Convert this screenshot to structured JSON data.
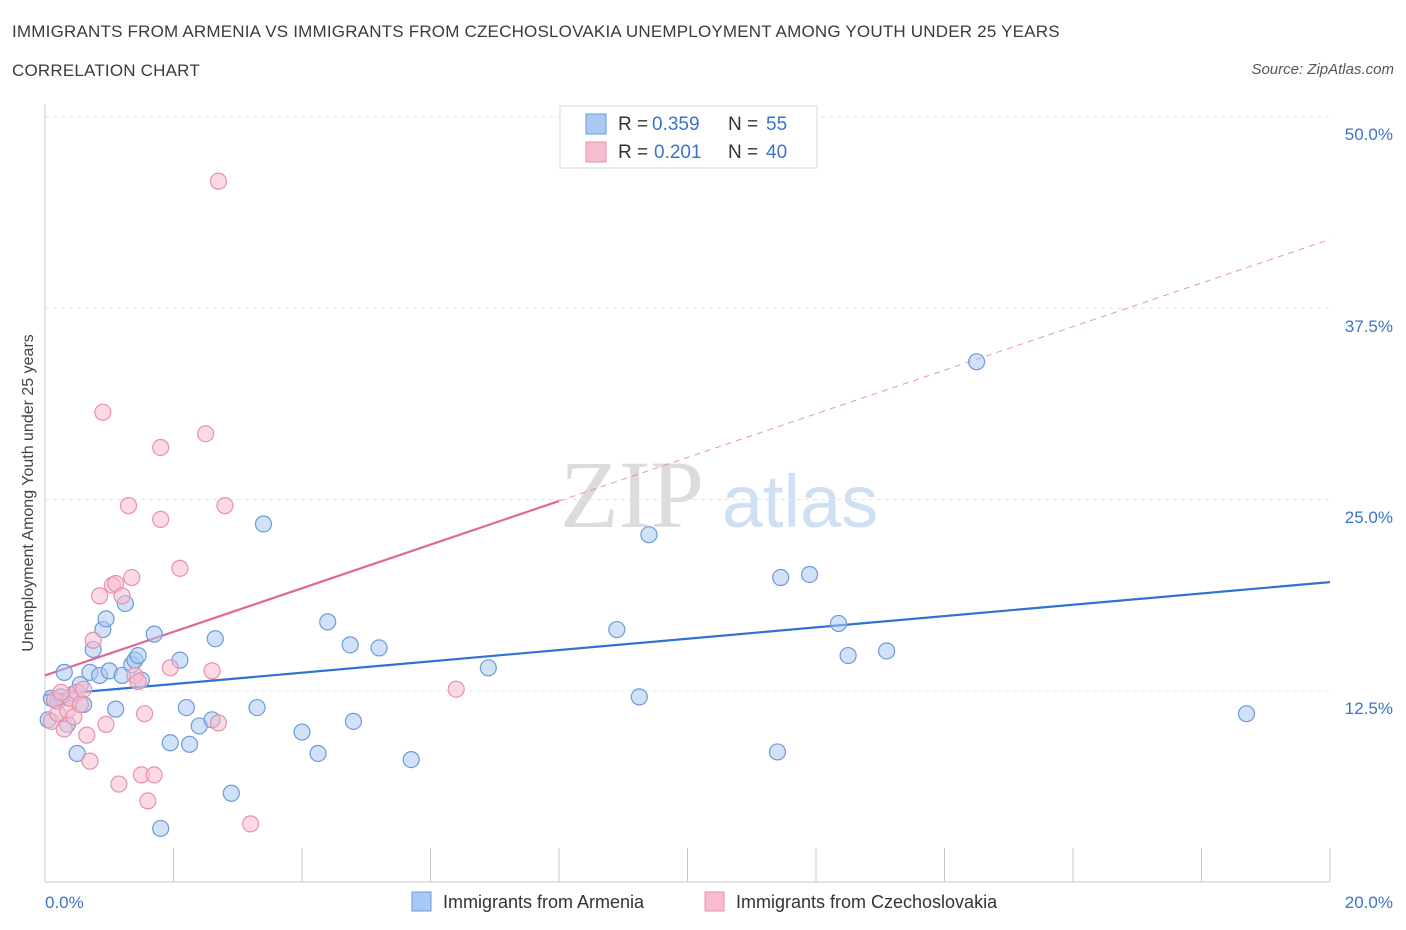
{
  "header": {
    "title": "IMMIGRANTS FROM ARMENIA VS IMMIGRANTS FROM CZECHOSLOVAKIA UNEMPLOYMENT AMONG YOUTH UNDER 25 YEARS",
    "subtitle": "CORRELATION CHART",
    "source": "Source: ZipAtlas.com"
  },
  "watermark": {
    "zip": "ZIP",
    "atlas": "atlas"
  },
  "legend_top": {
    "rows": [
      {
        "r_label": "R = ",
        "r_value": "0.359",
        "n_label": "N = ",
        "n_value": "55"
      },
      {
        "r_label": "R = ",
        "r_value": "0.201",
        "n_label": "N = ",
        "n_value": "40"
      }
    ]
  },
  "colors": {
    "armenia_fill": "#a9c8f2",
    "armenia_stroke": "#6b9bd8",
    "armenia_line": "#2f72d0",
    "czech_fill": "#f7bccd",
    "czech_stroke": "#e890ad",
    "czech_line": "#e0679a",
    "axis_label": "#3a74c9",
    "grid": "#dde3ea"
  },
  "chart_data": {
    "type": "scatter",
    "xlabel": "",
    "ylabel": "Unemployment Among Youth under 25 years",
    "xlim": [
      0,
      20
    ],
    "ylim": [
      0,
      50
    ],
    "x_tick_labels": [
      "0.0%",
      "20.0%"
    ],
    "y_tick_values": [
      12.5,
      25,
      37.5,
      50
    ],
    "y_tick_labels": [
      "12.5%",
      "25.0%",
      "37.5%",
      "50.0%"
    ],
    "series": [
      {
        "name": "Immigrants from Armenia",
        "R": 0.359,
        "N": 55,
        "trend": {
          "x0": 0,
          "y0": 12.2,
          "x1": 20,
          "y1": 19.6,
          "solid_until": 20
        },
        "points": [
          [
            0.1,
            12.0
          ],
          [
            0.2,
            11.8
          ],
          [
            0.25,
            12.1
          ],
          [
            0.3,
            13.7
          ],
          [
            0.35,
            10.3
          ],
          [
            0.45,
            12.3
          ],
          [
            0.5,
            8.4
          ],
          [
            0.55,
            12.9
          ],
          [
            0.6,
            11.6
          ],
          [
            0.7,
            13.7
          ],
          [
            0.75,
            15.2
          ],
          [
            0.85,
            13.5
          ],
          [
            0.9,
            16.5
          ],
          [
            0.95,
            17.2
          ],
          [
            1.0,
            13.8
          ],
          [
            1.1,
            11.3
          ],
          [
            1.2,
            13.5
          ],
          [
            1.25,
            18.2
          ],
          [
            1.35,
            14.2
          ],
          [
            1.4,
            14.5
          ],
          [
            1.45,
            14.8
          ],
          [
            1.5,
            13.2
          ],
          [
            1.7,
            16.2
          ],
          [
            1.8,
            3.5
          ],
          [
            1.95,
            9.1
          ],
          [
            2.1,
            14.5
          ],
          [
            2.2,
            11.4
          ],
          [
            2.25,
            9.0
          ],
          [
            2.4,
            10.2
          ],
          [
            2.6,
            10.6
          ],
          [
            2.65,
            15.9
          ],
          [
            2.9,
            5.8
          ],
          [
            3.3,
            11.4
          ],
          [
            3.4,
            23.4
          ],
          [
            4.0,
            9.8
          ],
          [
            4.25,
            8.4
          ],
          [
            4.4,
            17.0
          ],
          [
            4.75,
            15.5
          ],
          [
            4.8,
            10.5
          ],
          [
            5.2,
            15.3
          ],
          [
            5.7,
            8.0
          ],
          [
            6.9,
            14.0
          ],
          [
            8.9,
            16.5
          ],
          [
            9.25,
            12.1
          ],
          [
            9.4,
            22.7
          ],
          [
            11.4,
            8.5
          ],
          [
            11.45,
            19.9
          ],
          [
            11.9,
            20.1
          ],
          [
            12.35,
            16.9
          ],
          [
            12.5,
            14.8
          ],
          [
            13.1,
            15.1
          ],
          [
            14.5,
            34.0
          ],
          [
            18.7,
            11.0
          ],
          [
            0.05,
            10.6
          ],
          [
            0.15,
            11.9
          ]
        ]
      },
      {
        "name": "Immigrants from Czechoslovakia",
        "R": 0.201,
        "N": 40,
        "trend": {
          "x0": 0,
          "y0": 13.5,
          "x1": 20,
          "y1": 42.0,
          "solid_until": 8.0
        },
        "points": [
          [
            0.1,
            10.5
          ],
          [
            0.15,
            11.9
          ],
          [
            0.2,
            11.0
          ],
          [
            0.3,
            10.0
          ],
          [
            0.35,
            11.2
          ],
          [
            0.4,
            12.0
          ],
          [
            0.45,
            10.8
          ],
          [
            0.5,
            12.4
          ],
          [
            0.55,
            11.6
          ],
          [
            0.6,
            12.6
          ],
          [
            0.65,
            9.6
          ],
          [
            0.7,
            7.9
          ],
          [
            0.75,
            15.8
          ],
          [
            0.85,
            18.7
          ],
          [
            0.95,
            10.3
          ],
          [
            0.9,
            30.7
          ],
          [
            1.05,
            19.4
          ],
          [
            1.1,
            19.5
          ],
          [
            1.15,
            6.4
          ],
          [
            1.2,
            18.7
          ],
          [
            1.3,
            24.6
          ],
          [
            1.35,
            19.9
          ],
          [
            1.4,
            13.5
          ],
          [
            1.45,
            13.1
          ],
          [
            1.5,
            7.0
          ],
          [
            1.55,
            11.0
          ],
          [
            1.6,
            5.3
          ],
          [
            1.7,
            7.0
          ],
          [
            1.8,
            23.7
          ],
          [
            1.8,
            28.4
          ],
          [
            1.95,
            14.0
          ],
          [
            2.1,
            20.5
          ],
          [
            2.5,
            29.3
          ],
          [
            2.6,
            13.8
          ],
          [
            2.7,
            45.8
          ],
          [
            2.7,
            10.4
          ],
          [
            2.8,
            24.6
          ],
          [
            3.2,
            3.8
          ],
          [
            6.4,
            12.6
          ],
          [
            0.25,
            12.4
          ]
        ]
      }
    ]
  },
  "legend_bottom": {
    "items": [
      {
        "label": "Immigrants from Armenia"
      },
      {
        "label": "Immigrants from Czechoslovakia"
      }
    ]
  }
}
